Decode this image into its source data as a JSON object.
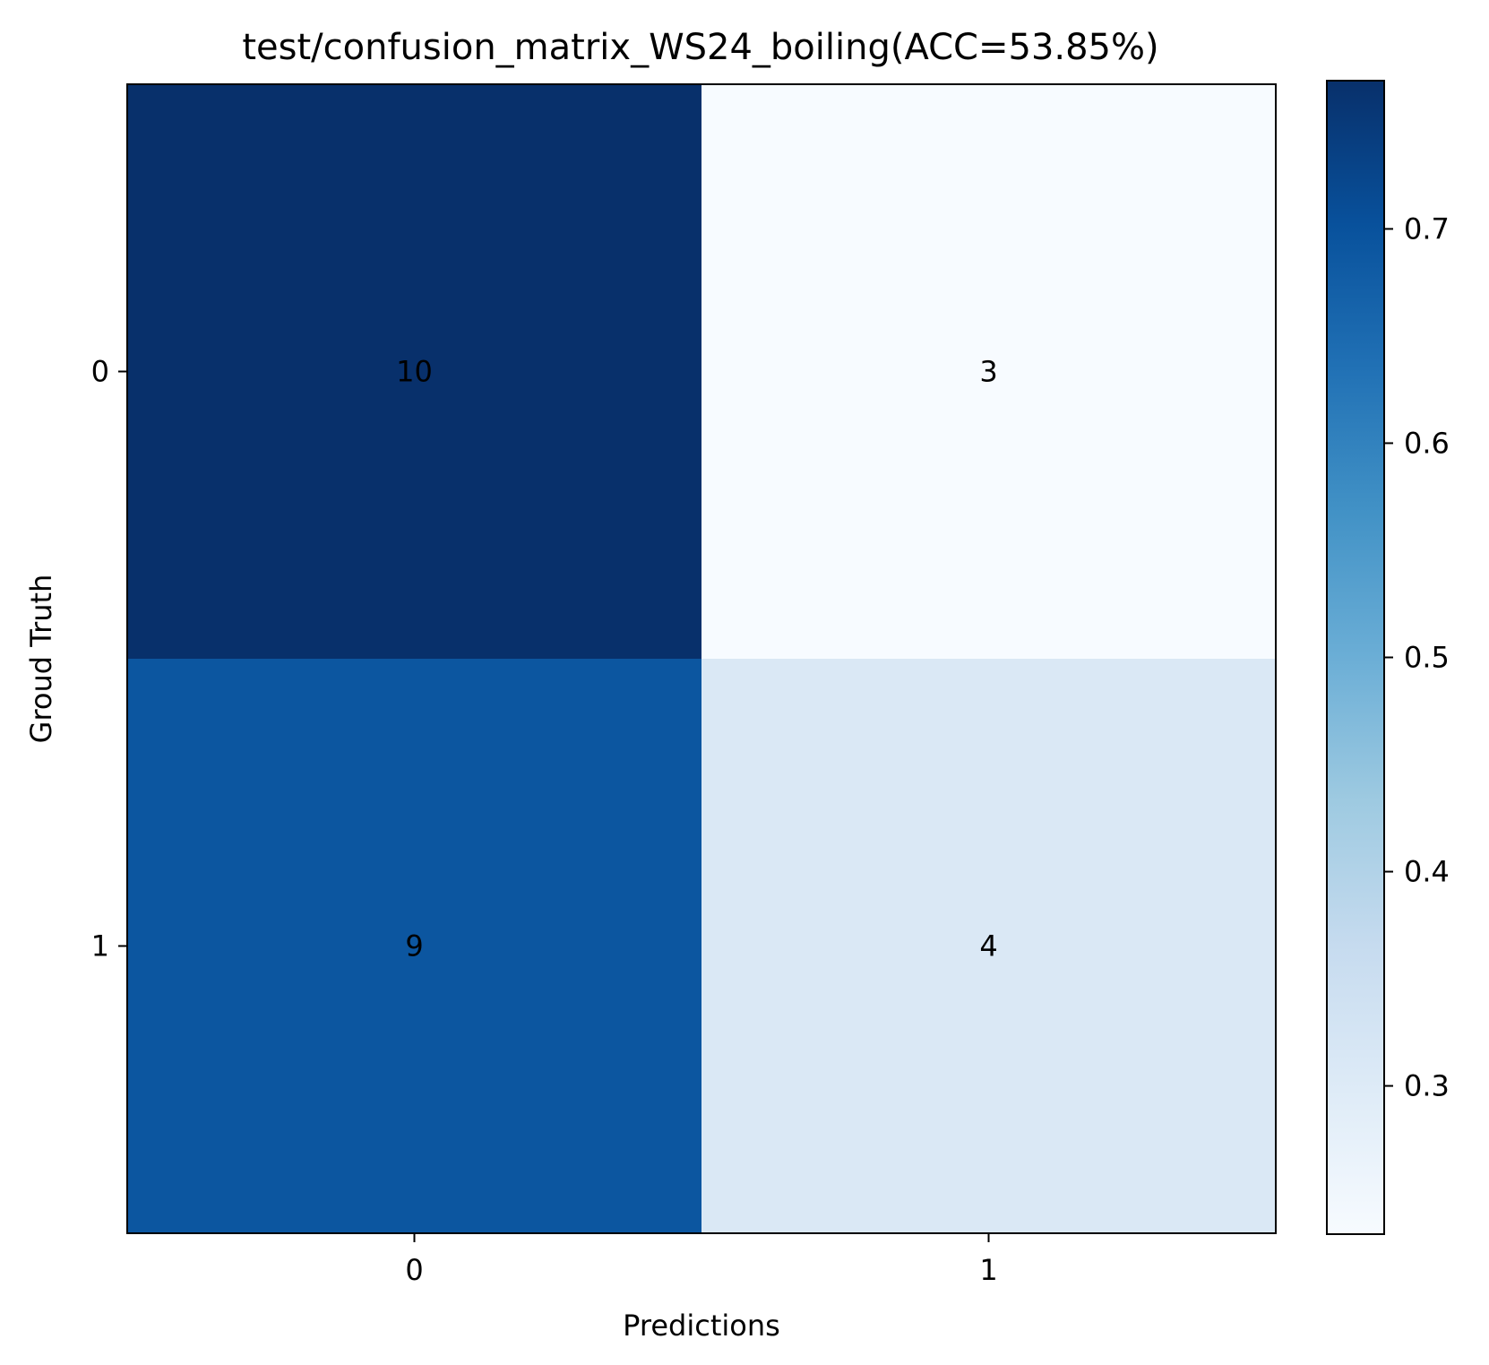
{
  "chart_data": {
    "type": "heatmap",
    "title": "test/confusion_matrix_WS24_boiling(ACC=53.85%)",
    "xlabel": "Predictions",
    "ylabel": "Groud Truth",
    "x_categories": [
      "0",
      "1"
    ],
    "y_categories": [
      "0",
      "1"
    ],
    "counts": [
      [
        10,
        3
      ],
      [
        9,
        4
      ]
    ],
    "normalized": [
      [
        0.7692,
        0.2308
      ],
      [
        0.6923,
        0.3077
      ]
    ],
    "colormap": "Blues",
    "colorbar": {
      "range": [
        0.2308,
        0.7692
      ],
      "ticks": [
        0.3,
        0.4,
        0.5,
        0.6,
        0.7
      ],
      "tick_labels": [
        "0.3",
        "0.4",
        "0.5",
        "0.6",
        "0.7"
      ]
    },
    "cell_colors": [
      [
        "#08306b",
        "#f7fbff"
      ],
      [
        "#0c56a0",
        "#dae8f5"
      ]
    ],
    "grid": false,
    "legend": "none"
  }
}
